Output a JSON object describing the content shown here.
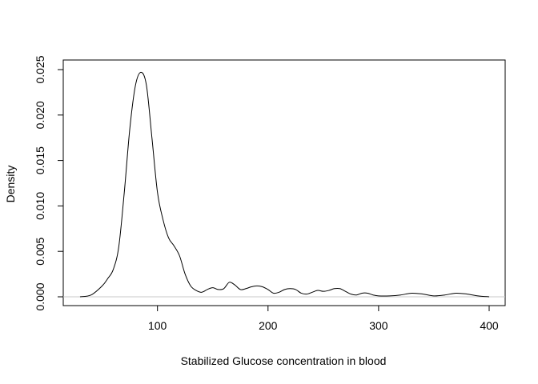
{
  "chart_data": {
    "type": "line",
    "title": "",
    "xlabel": "Stabilized Glucose concentration in blood",
    "ylabel": "Density",
    "xlim": [
      30,
      400
    ],
    "ylim": [
      0,
      0.025
    ],
    "x_ticks": [
      100,
      200,
      300,
      400
    ],
    "x_tick_labels": [
      "100",
      "200",
      "300",
      "400"
    ],
    "y_ticks": [
      0,
      0.005,
      0.01,
      0.015,
      0.02,
      0.025
    ],
    "y_tick_labels": [
      "0.000",
      "0.005",
      "0.010",
      "0.015",
      "0.020",
      "0.025"
    ],
    "grid": false,
    "legend": "none",
    "series": [
      {
        "x": [
          30,
          40,
          50,
          55,
          60,
          65,
          70,
          75,
          80,
          85,
          90,
          95,
          100,
          105,
          110,
          115,
          120,
          125,
          130,
          135,
          140,
          145,
          150,
          155,
          160,
          165,
          170,
          175,
          180,
          185,
          190,
          195,
          200,
          205,
          210,
          215,
          220,
          225,
          230,
          235,
          240,
          245,
          250,
          255,
          260,
          265,
          270,
          275,
          280,
          285,
          290,
          295,
          300,
          310,
          320,
          330,
          340,
          350,
          360,
          370,
          380,
          390,
          400
        ],
        "y": [
          0.0,
          0.0002,
          0.0012,
          0.002,
          0.003,
          0.0055,
          0.0115,
          0.0185,
          0.0232,
          0.0247,
          0.0233,
          0.0175,
          0.0115,
          0.0085,
          0.0065,
          0.0056,
          0.0045,
          0.0025,
          0.0012,
          0.0007,
          0.0005,
          0.0008,
          0.001,
          0.0008,
          0.0009,
          0.0016,
          0.0013,
          0.0008,
          0.0009,
          0.0011,
          0.0012,
          0.0011,
          0.0008,
          0.0004,
          0.0005,
          0.0008,
          0.0009,
          0.0008,
          0.0004,
          0.0003,
          0.0005,
          0.0007,
          0.0006,
          0.0007,
          0.0009,
          0.0009,
          0.0006,
          0.0003,
          0.0002,
          0.0004,
          0.0004,
          0.0002,
          0.0001,
          0.0001,
          0.0002,
          0.0004,
          0.0003,
          0.0001,
          0.0002,
          0.0004,
          0.0003,
          0.0001,
          0.0
        ]
      }
    ]
  },
  "colors": {
    "line": "#000000",
    "baseline": "#c8c8c8",
    "frame": "#000000"
  }
}
